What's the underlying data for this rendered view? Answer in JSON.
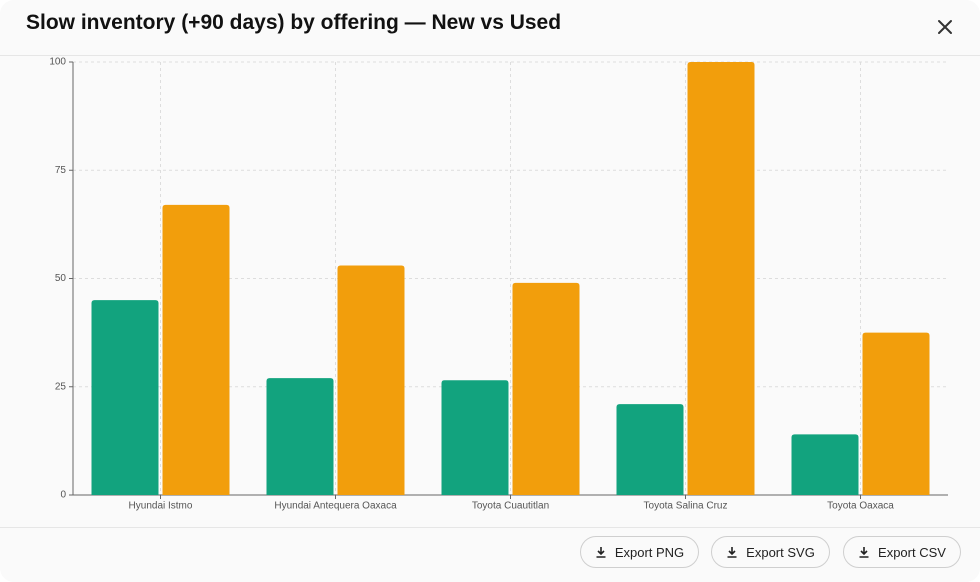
{
  "chart_data": {
    "type": "bar",
    "title": "Slow inventory (+90 days) by offering  — New vs Used",
    "categories": [
      "Hyundai Istmo",
      "Hyundai Antequera Oaxaca",
      "Toyota Cuautitlan",
      "Toyota Salina Cruz",
      "Toyota Oaxaca"
    ],
    "series": [
      {
        "color": "#12a37e",
        "values": [
          45,
          27,
          26.5,
          21,
          14
        ]
      },
      {
        "color": "#f29e0c",
        "values": [
          67,
          53,
          49,
          100,
          37.5
        ]
      }
    ],
    "ylim": [
      0,
      100
    ],
    "yticks": [
      0,
      25,
      50,
      75,
      100
    ],
    "grid": true
  },
  "dialog": {
    "buttons": [
      "Export PNG",
      "Export SVG",
      "Export CSV"
    ]
  }
}
